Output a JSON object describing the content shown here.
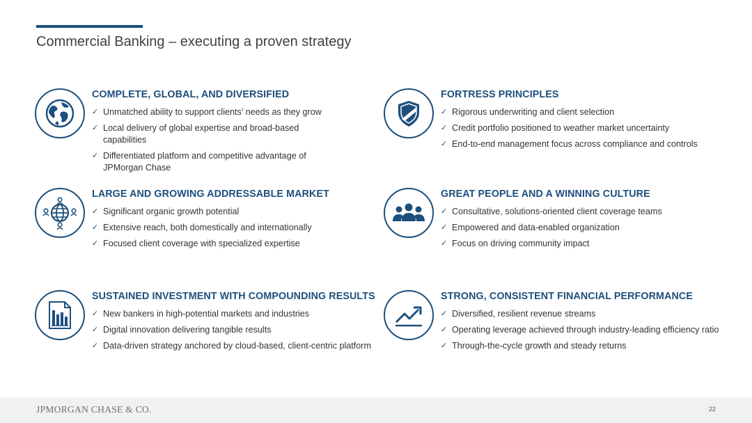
{
  "title": "Commercial Banking – executing a proven strategy",
  "sections": [
    {
      "icon": "globe-icon",
      "heading": "COMPLETE, GLOBAL, AND DIVERSIFIED",
      "items": [
        "Unmatched ability to support clients’ needs as they grow",
        "Local delivery of global expertise and broad-based capabilities",
        "Differentiated platform and competitive advantage of JPMorgan Chase"
      ]
    },
    {
      "icon": "shield-icon",
      "heading": "FORTRESS PRINCIPLES",
      "items": [
        "Rigorous underwriting and client selection",
        "Credit portfolio positioned to weather market uncertainty",
        "End-to-end management focus across compliance and controls"
      ]
    },
    {
      "icon": "global-network-icon",
      "heading": "LARGE AND GROWING ADDRESSABLE MARKET",
      "items": [
        "Significant organic growth potential",
        "Extensive reach, both domestically and internationally",
        "Focused client coverage with specialized expertise"
      ]
    },
    {
      "icon": "people-group-icon",
      "heading": "GREAT PEOPLE AND A WINNING CULTURE",
      "items": [
        "Consultative, solutions-oriented client coverage teams",
        "Empowered and data-enabled organization",
        "Focus on driving community impact"
      ]
    },
    {
      "icon": "report-chart-icon",
      "heading": "SUSTAINED INVESTMENT WITH COMPOUNDING RESULTS",
      "items": [
        "New bankers in high-potential markets and industries",
        "Digital innovation delivering tangible results",
        "Data-driven strategy anchored by cloud-based, client-centric platform"
      ]
    },
    {
      "icon": "trend-up-icon",
      "heading": "STRONG, CONSISTENT FINANCIAL PERFORMANCE",
      "items": [
        "Diversified, resilient revenue streams",
        "Operating leverage achieved through industry-leading efficiency ratio",
        "Through-the-cycle growth and steady returns"
      ]
    }
  ],
  "check_mark": "✓",
  "footer": {
    "logo": "JPMORGAN CHASE & CO.",
    "page_number": "22"
  },
  "colors": {
    "accent": "#1d4f7c",
    "text": "#333333",
    "footer_bg": "#f1f1f1"
  }
}
